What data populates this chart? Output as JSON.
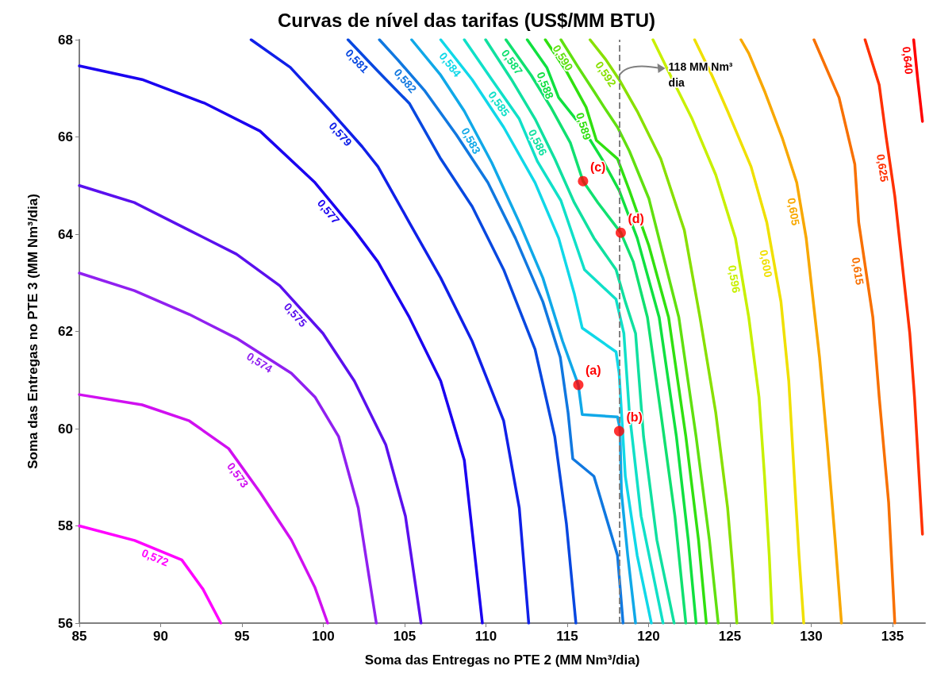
{
  "chart_data": {
    "type": "line",
    "title": "Curvas de nível das tarifas (US$/MM BTU)",
    "xlabel": "Soma das Entregas no PTE 2 (MM Nm³/dia)",
    "ylabel": "Soma das Entregas no PTE 3 (MM Nm³/dia)",
    "xlim": [
      85,
      137
    ],
    "xticks": [
      85,
      90,
      95,
      100,
      105,
      110,
      115,
      120,
      125,
      130,
      135
    ],
    "ylim": [
      56,
      68
    ],
    "yticks": [
      56,
      58,
      60,
      62,
      64,
      66,
      68
    ],
    "grid": false,
    "legend": false,
    "line_style": "solid",
    "series": [
      {
        "name": "0,572",
        "color": "#ff00ff",
        "x": [
          85,
          88.4,
          91.3,
          92.6,
          93.7
        ],
        "values": [
          58.0,
          57.7,
          57.3,
          56.7,
          56.0
        ]
      },
      {
        "name": "0,573",
        "color": "#d010f0",
        "x": [
          85,
          88.86,
          91.76,
          94.18,
          96.11,
          98.04,
          99.49,
          100.27
        ],
        "values": [
          60.7,
          60.49,
          60.16,
          59.59,
          58.69,
          57.71,
          56.73,
          56.0
        ]
      },
      {
        "name": "0,574",
        "color": "#9020f0",
        "x": [
          85,
          88.38,
          91.76,
          94.66,
          98.04,
          99.49,
          100.94,
          102.15,
          103.26
        ],
        "values": [
          63.2,
          62.84,
          62.35,
          61.86,
          61.14,
          60.65,
          59.84,
          58.37,
          56.0
        ]
      },
      {
        "name": "0,575",
        "color": "#5a10ee",
        "x": [
          85,
          88.38,
          91.76,
          94.66,
          97.32,
          99.98,
          101.91,
          103.84,
          105.05,
          106.01
        ],
        "values": [
          65.0,
          64.65,
          64.08,
          63.59,
          62.94,
          61.96,
          60.98,
          59.67,
          58.2,
          56.0
        ]
      },
      {
        "name": "0,577",
        "color": "#1a00f0",
        "x": [
          85,
          88.86,
          92.73,
          96.11,
          99.49,
          101.91,
          103.36,
          105.29,
          107.22,
          108.67,
          109.78
        ],
        "values": [
          67.46,
          67.18,
          66.69,
          66.12,
          65.06,
          64.08,
          63.43,
          62.29,
          60.98,
          59.35,
          56.0
        ]
      },
      {
        "name": "0,579",
        "color": "#1020e8",
        "x": [
          95.56,
          97.97,
          100.46,
          102.39,
          103.36,
          105.29,
          107.22,
          109.15,
          111.09,
          112.05,
          112.63
        ],
        "values": [
          68,
          67.43,
          66.53,
          65.8,
          65.39,
          64.24,
          63.1,
          61.8,
          60.16,
          58.37,
          56.0
        ]
      },
      {
        "name": "0,581",
        "color": "#0848e0",
        "x": [
          101.52,
          103.36,
          105.29,
          107.22,
          109.15,
          111.09,
          113.02,
          114.23,
          114.95,
          115.53
        ],
        "values": [
          68,
          67.35,
          66.69,
          65.55,
          64.57,
          63.27,
          61.63,
          59.84,
          58.04,
          56.0
        ]
      },
      {
        "name": "0,582",
        "color": "#1078e0",
        "x": [
          103.45,
          104.57,
          106.26,
          108.19,
          110.12,
          111.81,
          113.5,
          114.57,
          115.05,
          115.34,
          116.64,
          118.09,
          118.43
        ],
        "values": [
          68,
          67.59,
          66.94,
          66.04,
          65.06,
          63.92,
          62.61,
          61.47,
          60.33,
          59.38,
          59.02,
          57.39,
          56.0
        ]
      },
      {
        "name": "0,583",
        "color": "#10a8e8",
        "x": [
          105.43,
          107.22,
          108.67,
          110.36,
          112.05,
          113.5,
          114.71,
          115.68,
          115.92,
          118.09,
          118.24,
          118.33,
          118.72,
          119.2
        ],
        "values": [
          68,
          67.27,
          66.53,
          65.47,
          64.24,
          63.1,
          61.8,
          60.9,
          60.29,
          60.24,
          60.0,
          58.69,
          57.39,
          56.0
        ]
      },
      {
        "name": "0,584",
        "color": "#10d8e8",
        "x": [
          107.22,
          109.15,
          111.09,
          113.02,
          114.47,
          115.43,
          115.92,
          118.0,
          118.19,
          118.57,
          119.3,
          120.17
        ],
        "values": [
          68,
          67.18,
          66.2,
          65.06,
          63.92,
          62.78,
          62.07,
          61.58,
          61.14,
          59.02,
          57.39,
          56.0
        ]
      },
      {
        "name": "0,585",
        "color": "#10e0c8",
        "x": [
          108.67,
          110.36,
          112.05,
          113.16,
          114.61,
          116.06,
          118.0,
          118.48,
          118.82,
          119.54,
          120.89
        ],
        "values": [
          68,
          67.18,
          66.37,
          65.5,
          64.69,
          63.27,
          62.66,
          61.96,
          60.33,
          58.2,
          56.0
        ]
      },
      {
        "name": "0,586",
        "color": "#10e0a0",
        "x": [
          109.98,
          111.57,
          113.02,
          114.23,
          115.43,
          116.64,
          118.0,
          118.57,
          119.2,
          119.69,
          120.51,
          121.57
        ],
        "values": [
          68,
          67.18,
          66.37,
          65.55,
          64.65,
          63.92,
          63.27,
          62.61,
          61.96,
          59.84,
          57.71,
          56.0
        ]
      },
      {
        "name": "0,587",
        "color": "#10e070",
        "x": [
          111.23,
          112.78,
          113.99,
          115.19,
          115.97,
          116.88,
          118.29,
          119.06,
          119.93,
          120.75,
          121.62,
          122.29
        ],
        "values": [
          68,
          67.27,
          66.61,
          65.88,
          65.09,
          64.65,
          64.03,
          63.43,
          62.29,
          60.33,
          58.2,
          56.0
        ]
      },
      {
        "name": "0,588",
        "color": "#10e040",
        "x": [
          112.54,
          113.74,
          114.47,
          115.92,
          117.13,
          118.19,
          119.3,
          120.65,
          121.71,
          122.44,
          122.92
        ],
        "values": [
          68,
          67.43,
          66.81,
          66.2,
          65.55,
          64.9,
          63.92,
          62.29,
          59.84,
          57.71,
          56.0
        ]
      },
      {
        "name": "0,589",
        "color": "#30e010",
        "x": [
          113.65,
          114.95,
          116.16,
          116.79,
          118.09,
          118.82,
          120.02,
          121.23,
          122.29,
          123.07,
          123.55
        ],
        "values": [
          68,
          67.35,
          66.61,
          65.93,
          65.55,
          64.9,
          63.76,
          62.29,
          59.84,
          57.71,
          56.0
        ]
      },
      {
        "name": "0,590",
        "color": "#60e010",
        "x": [
          114.61,
          115.68,
          116.64,
          117.27,
          118.09,
          118.82,
          120.02,
          121.86,
          122.92,
          123.74,
          124.28
        ],
        "values": [
          68,
          67.43,
          66.94,
          66.61,
          66.2,
          65.71,
          64.73,
          62.29,
          59.84,
          57.71,
          56.0
        ]
      },
      {
        "name": "0,592",
        "color": "#88e000",
        "x": [
          116.4,
          117.37,
          118.19,
          119.3,
          120.75,
          122.2,
          123.16,
          124.13,
          124.86,
          125.19,
          125.43
        ],
        "values": [
          68,
          67.59,
          67.18,
          66.53,
          65.55,
          64.08,
          62.29,
          60.33,
          58.37,
          57.06,
          56.0
        ]
      },
      {
        "name": "0,596",
        "color": "#c8f000",
        "x": [
          120.27,
          121.47,
          122.68,
          124.13,
          125.34,
          126.16,
          126.79,
          127.13,
          127.42,
          127.61
        ],
        "values": [
          68,
          67.18,
          66.37,
          65.22,
          63.92,
          62.29,
          60.65,
          59.02,
          57.39,
          56.0
        ]
      },
      {
        "name": "0,600",
        "color": "#f0e000",
        "x": [
          122.83,
          123.89,
          124.86,
          126.3,
          127.27,
          128.14,
          128.62,
          128.96,
          129.25,
          129.54
        ],
        "values": [
          68,
          67.27,
          66.53,
          65.39,
          64.24,
          62.61,
          60.98,
          59.02,
          57.39,
          56.0
        ]
      },
      {
        "name": "0,605",
        "color": "#f8a800",
        "x": [
          125.68,
          126.16,
          127.17,
          128.24,
          129.11,
          129.69,
          130.07,
          130.51,
          130.99,
          131.47,
          131.86
        ],
        "values": [
          68,
          67.72,
          66.91,
          65.96,
          65.06,
          63.92,
          62.78,
          61.47,
          59.67,
          57.71,
          56.0
        ]
      },
      {
        "name": "0,615",
        "color": "#f87000",
        "x": [
          130.17,
          131.71,
          132.68,
          132.92,
          133.79,
          134.18,
          134.76,
          135.14
        ],
        "values": [
          68,
          66.81,
          65.44,
          64.24,
          62.29,
          60.65,
          58.48,
          56.0
        ]
      },
      {
        "name": "0,625",
        "color": "#ff3000",
        "x": [
          133.31,
          134.18,
          134.61,
          135.14,
          136.06,
          136.35,
          136.84
        ],
        "values": [
          68,
          67.07,
          65.99,
          64.78,
          61.96,
          60.65,
          57.83
        ]
      },
      {
        "name": "0,640",
        "color": "#ff0000",
        "x": [
          136.3,
          136.55,
          136.84
        ],
        "values": [
          68,
          67.18,
          66.32
        ]
      },
      {
        "type": "scatter",
        "color": "#ff0000",
        "marker": "circle",
        "x": [
          115.68,
          118.19,
          115.97,
          118.29
        ],
        "values": [
          60.9,
          59.95,
          65.09,
          64.03
        ]
      }
    ],
    "annotations": [
      {
        "text": "(a)",
        "x": 115.68,
        "y": 60.9
      },
      {
        "text": "(b)",
        "x": 118.19,
        "y": 59.95
      },
      {
        "text": "(c)",
        "x": 115.97,
        "y": 65.09
      },
      {
        "text": "(d)",
        "x": 118.29,
        "y": 64.03
      }
    ],
    "ref_lines": [
      {
        "axis": "x",
        "value": 118.2,
        "label": "118 MM Nm³\ndia",
        "color": "#808080",
        "line_style": "dashed"
      }
    ]
  }
}
